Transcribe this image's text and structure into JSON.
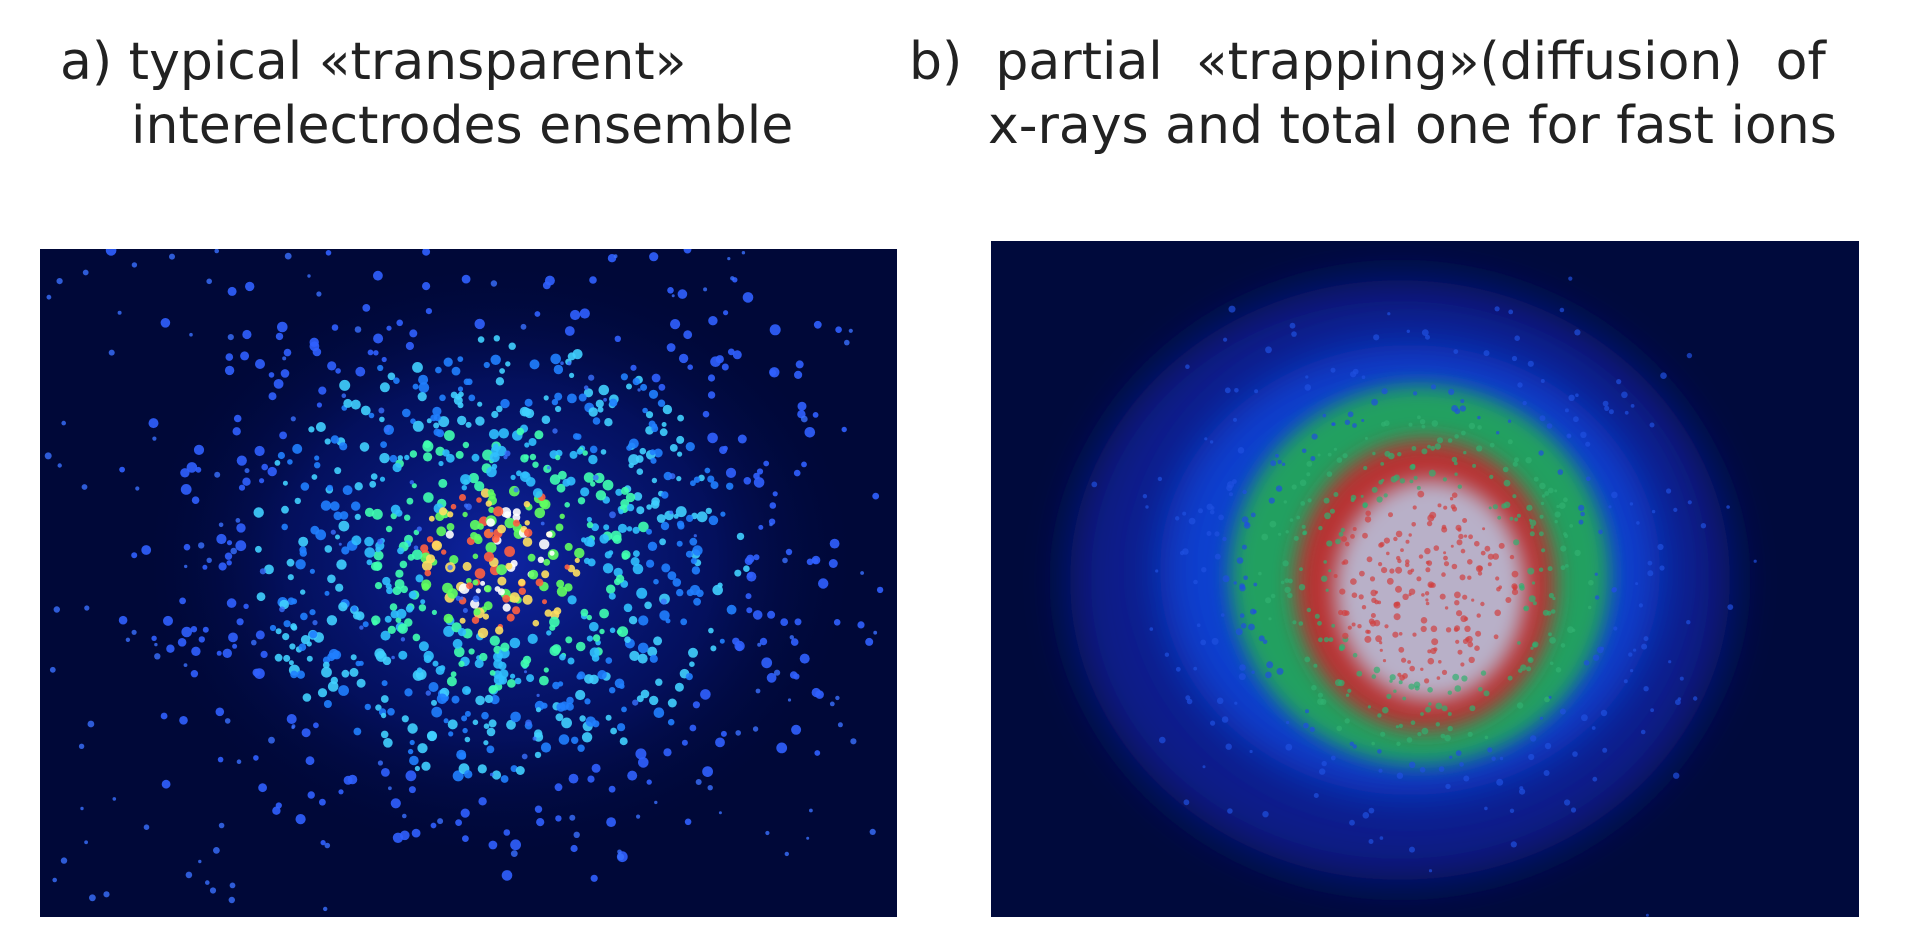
{
  "panels": [
    {
      "caption": [
        "a) typical «transparent»",
        "interelectrodes ensemble"
      ]
    },
    {
      "caption": [
        "b)  partial  «trapping»(diffusion)  of",
        "x-rays and total one for fast ions"
      ]
    }
  ]
}
